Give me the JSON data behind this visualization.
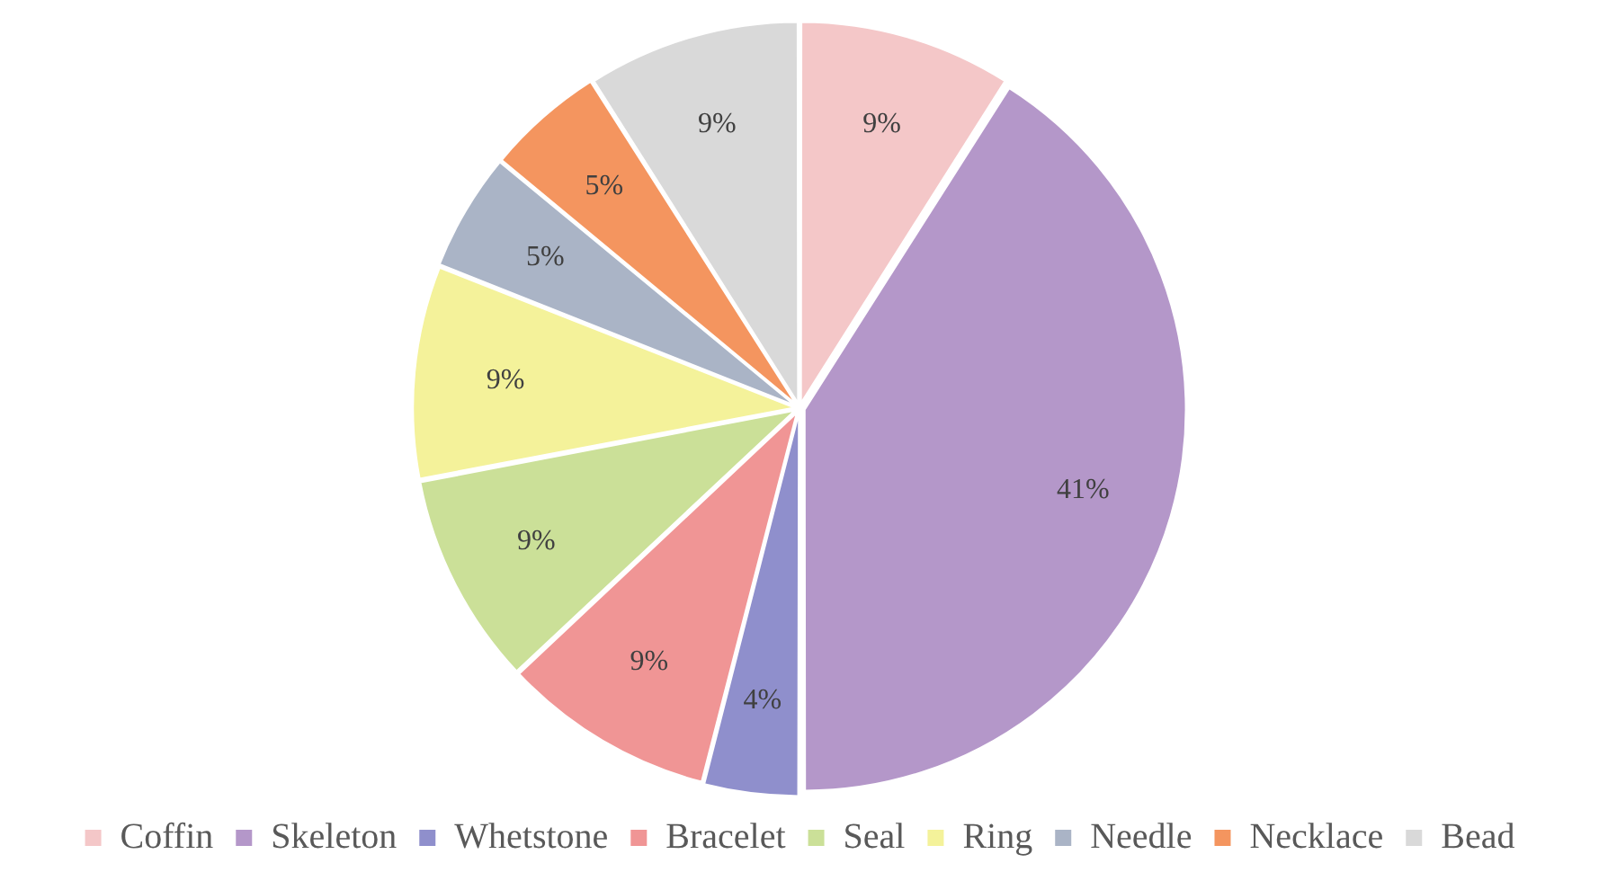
{
  "chart_data": {
    "type": "pie",
    "categories": [
      "Coffin",
      "Skeleton",
      "Whetstone",
      "Bracelet",
      "Seal",
      "Ring",
      "Needle",
      "Necklace",
      "Bead"
    ],
    "values": [
      9,
      41,
      4,
      9,
      9,
      9,
      5,
      5,
      9
    ],
    "colors": [
      "#f4c7c8",
      "#b497c9",
      "#8f8fcc",
      "#f09595",
      "#cbe098",
      "#f4f29a",
      "#aab4c6",
      "#f4955f",
      "#d9d9d9"
    ],
    "value_labels": [
      "9%",
      "41%",
      "4%",
      "9%",
      "9%",
      "9%",
      "5%",
      "5%",
      "9%"
    ],
    "legend": "bottom"
  }
}
